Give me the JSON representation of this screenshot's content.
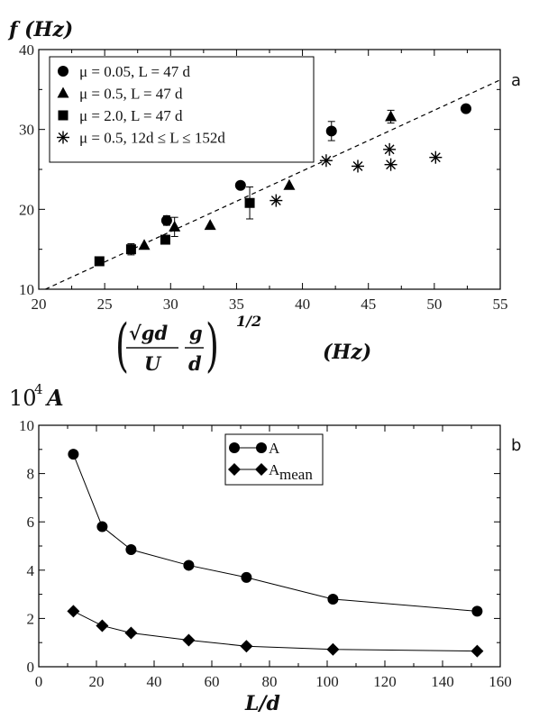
{
  "chart_data": [
    {
      "type": "scatter",
      "panel_label": "a",
      "ylabel": "f (Hz)",
      "xlabel_parts": {
        "sqrt": "√gd",
        "num1": "g",
        "den1": "U",
        "den2": "d",
        "exp": "1/2",
        "unit": "(Hz)"
      },
      "xlim": [
        20,
        55
      ],
      "ylim": [
        10,
        40
      ],
      "xticks": [
        20,
        25,
        30,
        35,
        40,
        45,
        50,
        55
      ],
      "yticks": [
        10,
        20,
        30,
        40
      ],
      "legend_position": "top-left",
      "fit_line": {
        "style": "dashed",
        "x": [
          20.5,
          55
        ],
        "y": [
          10,
          36.2
        ]
      },
      "series": [
        {
          "name": "μ = 0.05, L = 47 d",
          "marker": "circle",
          "x": [
            29.7,
            35.3,
            42.2,
            52.4
          ],
          "y": [
            18.6,
            23.0,
            29.8,
            32.6
          ],
          "err": [
            0.6,
            0,
            1.2,
            0
          ]
        },
        {
          "name": "μ = 0.5,   L = 47 d",
          "marker": "triangle",
          "x": [
            28.0,
            30.3,
            33.0,
            39.0,
            46.7
          ],
          "y": [
            15.5,
            17.8,
            18.0,
            23.0,
            31.6
          ],
          "err": [
            0,
            1.2,
            0,
            0,
            0.8
          ]
        },
        {
          "name": "μ = 2.0,   L = 47 d",
          "marker": "square",
          "x": [
            24.6,
            27.0,
            29.6,
            36.0
          ],
          "y": [
            13.5,
            15.0,
            16.2,
            20.8
          ],
          "err": [
            0,
            0.7,
            0,
            2.0
          ]
        },
        {
          "name": "μ = 0.5, 12d ≤ L ≤ 152d",
          "marker": "star",
          "x": [
            38.0,
            41.8,
            44.2,
            46.6,
            46.7,
            50.1
          ],
          "y": [
            21.1,
            26.1,
            25.4,
            27.5,
            25.6,
            26.5
          ],
          "err": [
            0,
            0,
            0,
            0,
            0,
            0
          ]
        }
      ]
    },
    {
      "type": "line",
      "panel_label": "b",
      "ylabel": "10",
      "ylabel_exp": "4",
      "ylabel_var": "A",
      "xlabel": "L/d",
      "xlim": [
        0,
        160
      ],
      "ylim": [
        0,
        10
      ],
      "xticks": [
        0,
        20,
        40,
        60,
        80,
        100,
        120,
        140,
        160
      ],
      "yticks": [
        0,
        2,
        4,
        6,
        8,
        10
      ],
      "legend_position": "top-center",
      "x": [
        12,
        22,
        32,
        52,
        72,
        102,
        152
      ],
      "series": [
        {
          "name": "A",
          "marker": "circle",
          "values": [
            8.8,
            5.8,
            4.85,
            4.2,
            3.7,
            2.8,
            2.3
          ]
        },
        {
          "name": "A",
          "name_sub": "mean",
          "marker": "diamond",
          "values": [
            2.3,
            1.7,
            1.4,
            1.1,
            0.85,
            0.72,
            0.65
          ]
        }
      ]
    }
  ]
}
